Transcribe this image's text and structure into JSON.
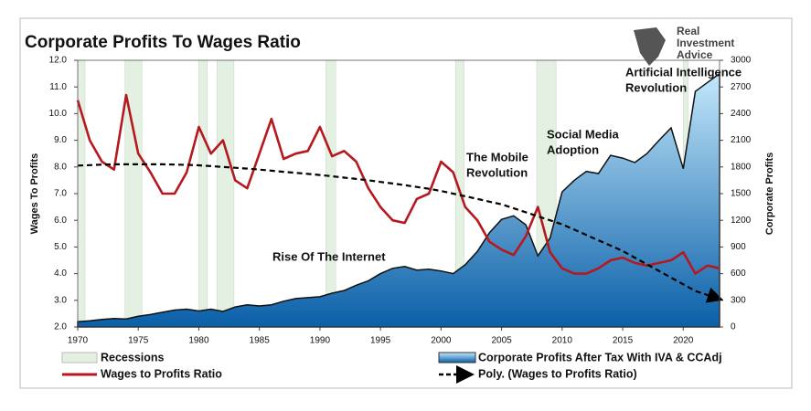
{
  "chart_data": {
    "type": "line",
    "title": "Corporate Profits To Wages Ratio",
    "ylabel": "Wages To Profits",
    "y2label": "Corporate Profits",
    "logo_text": [
      "Real",
      "Investment",
      "Advice"
    ],
    "annotations": [
      [
        "Rise Of The Internet"
      ],
      [
        "The Mobile",
        "Revolution"
      ],
      [
        "Social Media",
        "Adoption"
      ],
      [
        "Artificial Intelligence",
        "Revolution"
      ]
    ],
    "xlim": [
      1970,
      2023
    ],
    "xticks": [
      1970,
      1975,
      1980,
      1985,
      1990,
      1995,
      2000,
      2005,
      2010,
      2015,
      2020
    ],
    "ylim": [
      2,
      12
    ],
    "yticks": [
      {
        "value": 2,
        "label": "2.0"
      },
      {
        "value": 3,
        "label": "3.0"
      },
      {
        "value": 4,
        "label": "4.0"
      },
      {
        "value": 5,
        "label": "5.0"
      },
      {
        "value": 6,
        "label": "6.0"
      },
      {
        "value": 7,
        "label": "7.0"
      },
      {
        "value": 8,
        "label": "8.0"
      },
      {
        "value": 9,
        "label": "9.0"
      },
      {
        "value": 10,
        "label": "10.0"
      },
      {
        "value": 11,
        "label": "11.0"
      },
      {
        "value": 12,
        "label": "12.0"
      }
    ],
    "y2lim": [
      0,
      3000
    ],
    "y2ticks": [
      0,
      300,
      600,
      900,
      1200,
      1500,
      1800,
      2100,
      2400,
      2700,
      3000
    ],
    "recessions_name": "Recessions",
    "recessions_color": "#e4f1e2",
    "recessions": [
      [
        1970,
        1970.6
      ],
      [
        1973.9,
        1975.3
      ],
      [
        1980,
        1980.7
      ],
      [
        1981.5,
        1982.9
      ],
      [
        1990.5,
        1991.3
      ],
      [
        2001.2,
        2001.9
      ],
      [
        2007.9,
        2009.5
      ],
      [
        2020,
        2020.4
      ]
    ],
    "x": [
      1970,
      1971,
      1972,
      1973,
      1974,
      1975,
      1976,
      1977,
      1978,
      1979,
      1980,
      1981,
      1982,
      1983,
      1984,
      1985,
      1986,
      1987,
      1988,
      1989,
      1990,
      1991,
      1992,
      1993,
      1994,
      1995,
      1996,
      1997,
      1998,
      1999,
      2000,
      2001,
      2002,
      2003,
      2004,
      2005,
      2006,
      2007,
      2008,
      2009,
      2010,
      2011,
      2012,
      2013,
      2014,
      2015,
      2016,
      2017,
      2018,
      2019,
      2020,
      2021,
      2022,
      2023
    ],
    "series": [
      {
        "name": "Corporate Profits After Tax With IVA & CCAdj",
        "type": "area",
        "axis": "y2",
        "color": "#0a5fa8",
        "color_top": "#c3e8fb",
        "values": [
          60,
          70,
          85,
          95,
          90,
          120,
          140,
          165,
          190,
          200,
          180,
          200,
          175,
          225,
          250,
          236,
          250,
          290,
          320,
          330,
          340,
          380,
          410,
          470,
          520,
          600,
          660,
          680,
          640,
          650,
          630,
          600,
          700,
          850,
          1060,
          1210,
          1250,
          1150,
          800,
          1000,
          1520,
          1650,
          1750,
          1726,
          1930,
          1900,
          1850,
          1950,
          2100,
          2240,
          1780,
          2650,
          2750,
          2850
        ]
      },
      {
        "name": "Wages to Profits Ratio",
        "type": "line",
        "axis": "y",
        "color": "#b5191f",
        "values": [
          10.5,
          9.0,
          8.2,
          7.9,
          10.7,
          8.5,
          7.8,
          7.0,
          7.0,
          7.8,
          9.5,
          8.5,
          9.0,
          7.5,
          7.2,
          8.5,
          9.8,
          8.3,
          8.5,
          8.6,
          9.5,
          8.4,
          8.6,
          8.2,
          7.2,
          6.5,
          6.0,
          5.9,
          6.8,
          7.0,
          8.2,
          7.8,
          6.5,
          6.0,
          5.2,
          4.9,
          4.7,
          5.4,
          6.5,
          4.8,
          4.2,
          4.0,
          4.0,
          4.2,
          4.5,
          4.6,
          4.4,
          4.3,
          4.4,
          4.5,
          4.8,
          4.0,
          4.3,
          4.2
        ]
      },
      {
        "name": "Poly. (Wages to Profits Ratio)",
        "type": "trend",
        "axis": "y",
        "color": "#000000",
        "values": [
          8.05,
          8.07,
          8.09,
          8.1,
          8.1,
          8.1,
          8.1,
          8.1,
          8.09,
          8.08,
          8.06,
          8.03,
          8.0,
          7.97,
          7.94,
          7.9,
          7.86,
          7.82,
          7.78,
          7.74,
          7.7,
          7.65,
          7.6,
          7.55,
          7.5,
          7.44,
          7.38,
          7.32,
          7.25,
          7.18,
          7.1,
          7.0,
          6.9,
          6.8,
          6.7,
          6.6,
          6.45,
          6.3,
          6.15,
          6.0,
          5.85,
          5.65,
          5.45,
          5.25,
          5.05,
          4.85,
          4.6,
          4.35,
          4.1,
          3.85,
          3.6,
          3.35,
          3.2,
          3.05
        ]
      }
    ]
  }
}
